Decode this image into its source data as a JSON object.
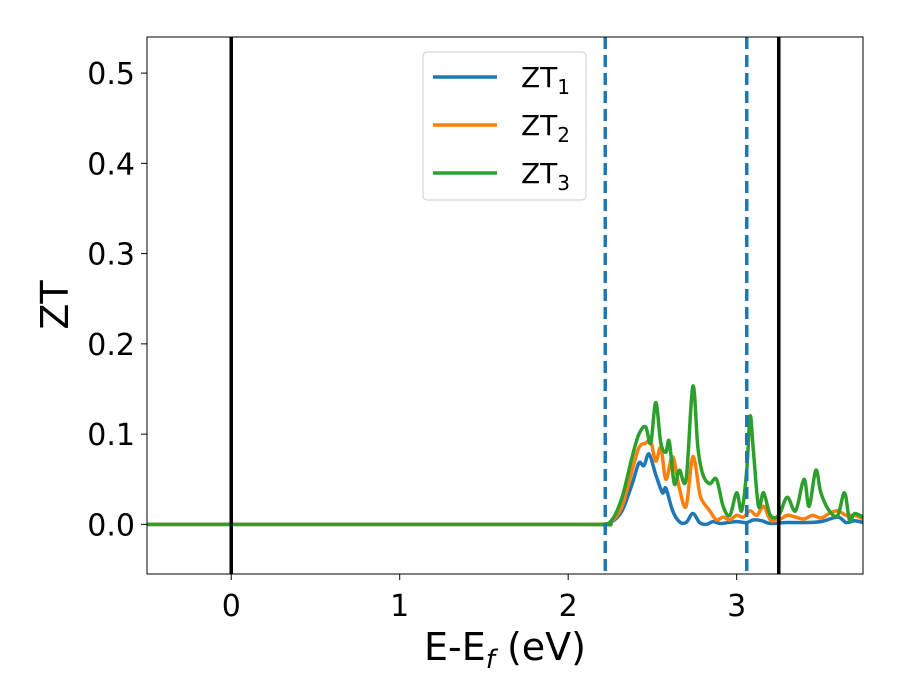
{
  "chart_data": {
    "type": "line",
    "xlabel": "E-E",
    "xlabel_sub": "f",
    "xlabel_unit": " (eV)",
    "ylabel": "ZT",
    "xlim": [
      -0.5,
      3.75
    ],
    "ylim": [
      -0.055,
      0.54
    ],
    "xticks": [
      {
        "value": 0,
        "label": "0"
      },
      {
        "value": 1,
        "label": "1"
      },
      {
        "value": 2,
        "label": "2"
      },
      {
        "value": 3,
        "label": "3"
      }
    ],
    "yticks": [
      {
        "value": 0.0,
        "label": "0.0"
      },
      {
        "value": 0.1,
        "label": "0.1"
      },
      {
        "value": 0.2,
        "label": "0.2"
      },
      {
        "value": 0.3,
        "label": "0.3"
      },
      {
        "value": 0.4,
        "label": "0.4"
      },
      {
        "value": 0.5,
        "label": "0.5"
      }
    ],
    "grid": false,
    "legend_position": "top-center",
    "vlines": [
      {
        "x": 0.0,
        "style": "solid",
        "color": "#000000"
      },
      {
        "x": 3.25,
        "style": "solid",
        "color": "#000000"
      },
      {
        "x": 2.22,
        "style": "dashed",
        "color": "#1f77b4"
      },
      {
        "x": 3.06,
        "style": "dashed",
        "color": "#1f77b4"
      }
    ],
    "series": [
      {
        "name": "ZT",
        "name_sub": "1",
        "color": "#1f77b4",
        "points": [
          [
            -0.5,
            0
          ],
          [
            2.0,
            0
          ],
          [
            2.2,
            0.0
          ],
          [
            2.26,
            0.003
          ],
          [
            2.32,
            0.015
          ],
          [
            2.38,
            0.045
          ],
          [
            2.42,
            0.068
          ],
          [
            2.45,
            0.065
          ],
          [
            2.48,
            0.078
          ],
          [
            2.52,
            0.055
          ],
          [
            2.56,
            0.035
          ],
          [
            2.58,
            0.04
          ],
          [
            2.62,
            0.015
          ],
          [
            2.66,
            0.003
          ],
          [
            2.7,
            0.002
          ],
          [
            2.74,
            0.012
          ],
          [
            2.78,
            0.002
          ],
          [
            2.82,
            0.0
          ],
          [
            2.86,
            0.003
          ],
          [
            2.9,
            0.001
          ],
          [
            2.95,
            0.002
          ],
          [
            3.0,
            0.003
          ],
          [
            3.06,
            0.002
          ],
          [
            3.1,
            0.005
          ],
          [
            3.15,
            0.004
          ],
          [
            3.2,
            0.001
          ],
          [
            3.3,
            0.002
          ],
          [
            3.4,
            0.002
          ],
          [
            3.5,
            0.003
          ],
          [
            3.6,
            0.008
          ],
          [
            3.65,
            0.002
          ],
          [
            3.7,
            0.004
          ],
          [
            3.75,
            0.002
          ]
        ]
      },
      {
        "name": "ZT",
        "name_sub": "2",
        "color": "#ff7f0e",
        "points": [
          [
            -0.5,
            0
          ],
          [
            2.0,
            0
          ],
          [
            2.2,
            0.0
          ],
          [
            2.26,
            0.004
          ],
          [
            2.32,
            0.02
          ],
          [
            2.38,
            0.06
          ],
          [
            2.42,
            0.085
          ],
          [
            2.46,
            0.09
          ],
          [
            2.49,
            0.092
          ],
          [
            2.52,
            0.07
          ],
          [
            2.55,
            0.085
          ],
          [
            2.58,
            0.05
          ],
          [
            2.62,
            0.075
          ],
          [
            2.66,
            0.04
          ],
          [
            2.7,
            0.02
          ],
          [
            2.74,
            0.075
          ],
          [
            2.78,
            0.035
          ],
          [
            2.8,
            0.025
          ],
          [
            2.84,
            0.015
          ],
          [
            2.88,
            0.005
          ],
          [
            2.92,
            0.008
          ],
          [
            2.96,
            0.005
          ],
          [
            3.0,
            0.01
          ],
          [
            3.04,
            0.008
          ],
          [
            3.08,
            0.015
          ],
          [
            3.12,
            0.01
          ],
          [
            3.16,
            0.02
          ],
          [
            3.2,
            0.005
          ],
          [
            3.25,
            0.005
          ],
          [
            3.3,
            0.01
          ],
          [
            3.35,
            0.008
          ],
          [
            3.4,
            0.006
          ],
          [
            3.45,
            0.01
          ],
          [
            3.5,
            0.007
          ],
          [
            3.55,
            0.012
          ],
          [
            3.6,
            0.015
          ],
          [
            3.65,
            0.01
          ],
          [
            3.7,
            0.01
          ],
          [
            3.75,
            0.006
          ]
        ]
      },
      {
        "name": "ZT",
        "name_sub": "3",
        "color": "#2ca02c",
        "points": [
          [
            -0.5,
            0
          ],
          [
            2.0,
            0
          ],
          [
            2.2,
            0.0
          ],
          [
            2.26,
            0.005
          ],
          [
            2.32,
            0.03
          ],
          [
            2.38,
            0.075
          ],
          [
            2.42,
            0.1
          ],
          [
            2.46,
            0.108
          ],
          [
            2.49,
            0.09
          ],
          [
            2.52,
            0.135
          ],
          [
            2.55,
            0.09
          ],
          [
            2.58,
            0.08
          ],
          [
            2.6,
            0.092
          ],
          [
            2.63,
            0.045
          ],
          [
            2.66,
            0.06
          ],
          [
            2.7,
            0.05
          ],
          [
            2.74,
            0.153
          ],
          [
            2.77,
            0.085
          ],
          [
            2.8,
            0.055
          ],
          [
            2.84,
            0.045
          ],
          [
            2.88,
            0.05
          ],
          [
            2.92,
            0.02
          ],
          [
            2.96,
            0.01
          ],
          [
            3.0,
            0.035
          ],
          [
            3.03,
            0.015
          ],
          [
            3.06,
            0.06
          ],
          [
            3.08,
            0.12
          ],
          [
            3.1,
            0.08
          ],
          [
            3.13,
            0.02
          ],
          [
            3.16,
            0.035
          ],
          [
            3.2,
            0.01
          ],
          [
            3.25,
            0.01
          ],
          [
            3.3,
            0.03
          ],
          [
            3.35,
            0.015
          ],
          [
            3.4,
            0.05
          ],
          [
            3.43,
            0.02
          ],
          [
            3.47,
            0.06
          ],
          [
            3.5,
            0.035
          ],
          [
            3.55,
            0.015
          ],
          [
            3.6,
            0.01
          ],
          [
            3.64,
            0.035
          ],
          [
            3.67,
            0.005
          ],
          [
            3.7,
            0.012
          ],
          [
            3.75,
            0.008
          ]
        ]
      }
    ]
  }
}
